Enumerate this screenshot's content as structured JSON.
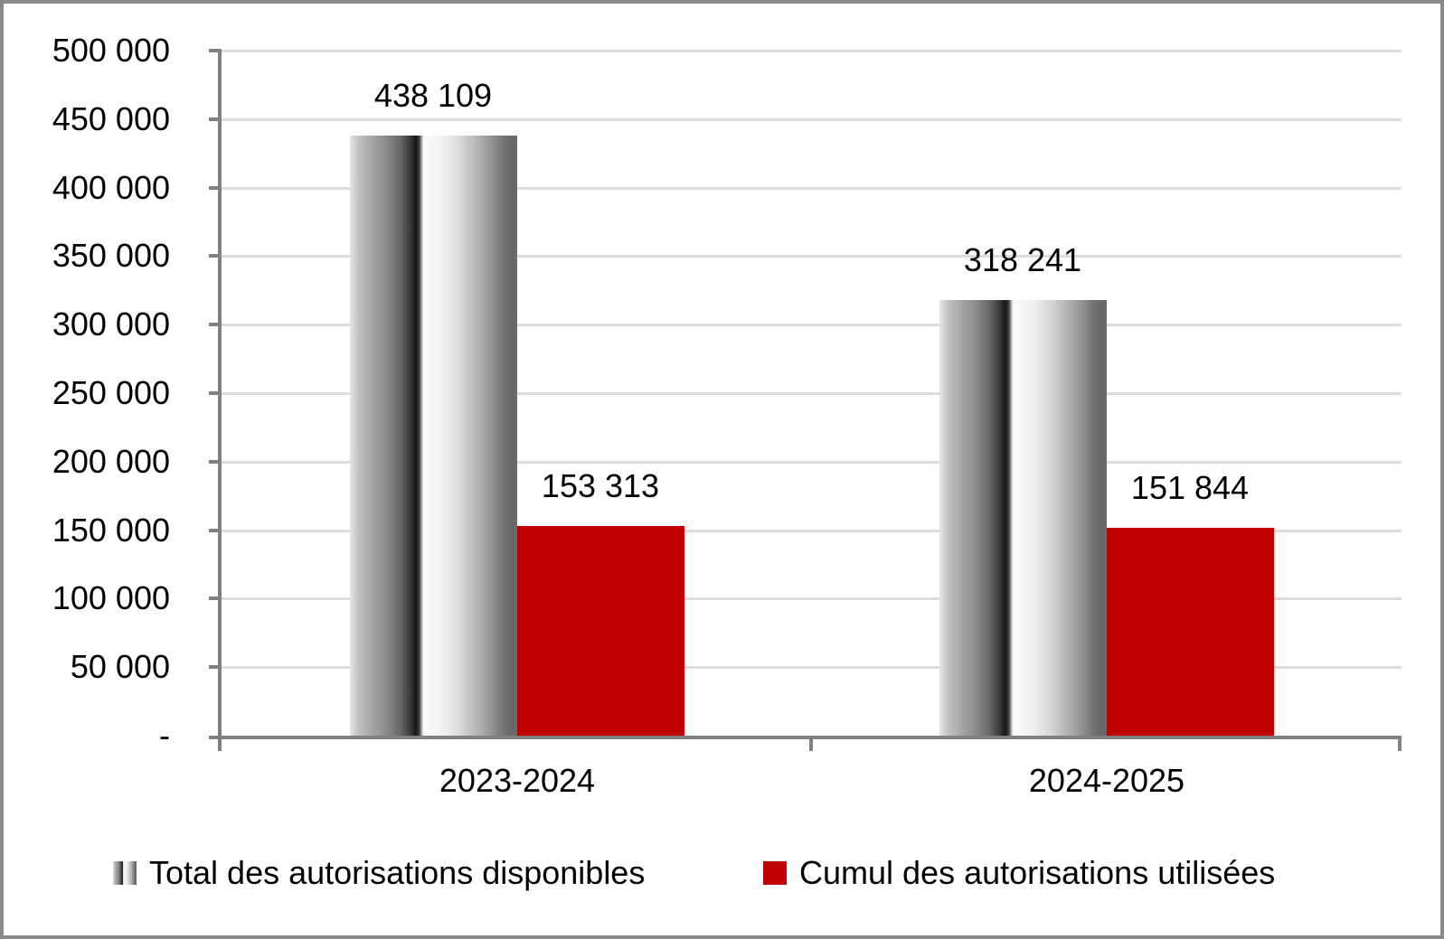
{
  "chart_data": {
    "type": "bar",
    "title": "",
    "categories": [
      "2023-2024",
      "2024-2025"
    ],
    "series": [
      {
        "name": "Total des autorisations disponibles",
        "values": [
          438109,
          318241
        ],
        "labels": [
          "438 109",
          "318 241"
        ],
        "fill": "gray-gradient-cylinder"
      },
      {
        "name": "Cumul des autorisations utilisées",
        "values": [
          153313,
          151844
        ],
        "labels": [
          "153 313",
          "151 844"
        ],
        "fill": "#C00000"
      }
    ],
    "ylim": [
      0,
      500000
    ],
    "y_tick_step": 50000,
    "y_tick_labels": [
      "500 000",
      "450 000",
      "400 000",
      "350 000",
      "300 000",
      "250 000",
      "200 000",
      "150 000",
      "100 000",
      "50 000",
      "-"
    ],
    "grid": true,
    "legend_position": "bottom",
    "data_labels_shown": true
  },
  "colors": {
    "series_red": "#C00000",
    "axis_line": "#808080",
    "gridline": "#DCDCDC",
    "chart_border": "#8A8A8A",
    "text": "#000000",
    "background": "#FFFFFF"
  }
}
